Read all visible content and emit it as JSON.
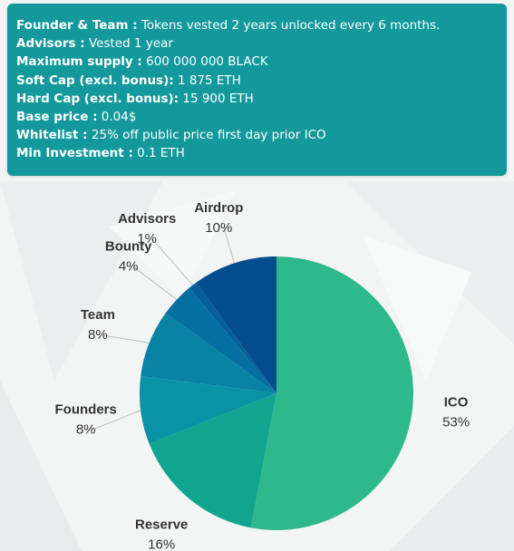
{
  "info": [
    {
      "key": "Founder & Team :",
      "value": " Tokens vested 2 years unlocked every 6 months."
    },
    {
      "key": "Advisors :",
      "value": " Vested 1 year"
    },
    {
      "key": "Maximum supply :",
      "value": " 600 000 000 BLACK"
    },
    {
      "key": "Soft Cap (excl. bonus):",
      "value": " 1 875 ETH"
    },
    {
      "key": "Hard Cap (excl. bonus):",
      "value": " 15 900 ETH"
    },
    {
      "key": "Base price :",
      "value": " 0.04$"
    },
    {
      "key": "Whitelist :",
      "value": " 25% off public price first day prior ICO"
    },
    {
      "key": "Min Investment :",
      "value": " 0.1 ETH"
    }
  ],
  "colors": {
    "panel": "#13999b",
    "panel_text": "#ffffff",
    "label_text": "#333333",
    "connector": "#bbbbbb"
  },
  "chart_data": {
    "type": "pie",
    "title": "",
    "start_angle_deg": 0,
    "direction": "clockwise",
    "slices": [
      {
        "name": "ICO",
        "value": 53,
        "label": "53%",
        "color": "#2db98c"
      },
      {
        "name": "Reserve",
        "value": 16,
        "label": "16%",
        "color": "#11a58f"
      },
      {
        "name": "Founders",
        "value": 8,
        "label": "8%",
        "color": "#0993a4"
      },
      {
        "name": "Team",
        "value": 8,
        "label": "8%",
        "color": "#0883a6"
      },
      {
        "name": "Bounty",
        "value": 4,
        "label": "4%",
        "color": "#066fa1"
      },
      {
        "name": "Advisors",
        "value": 1,
        "label": "1%",
        "color": "#05609a"
      },
      {
        "name": "Airdrop",
        "value": 10,
        "label": "10%",
        "color": "#044e8f"
      }
    ]
  }
}
